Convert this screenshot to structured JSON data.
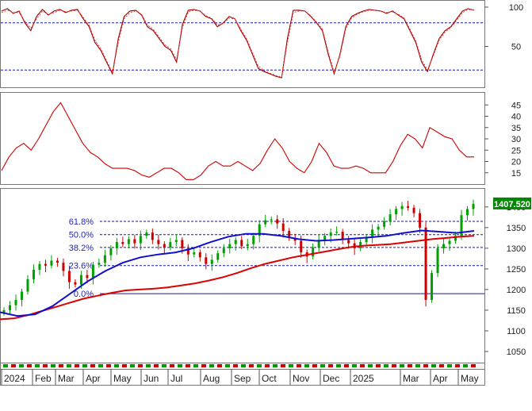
{
  "chart_data": [
    {
      "panel": "stochastic-oscillator",
      "type": "line",
      "y_ticks": [
        "100",
        "50"
      ],
      "ylim": [
        0,
        105
      ],
      "reference_lines": [
        80,
        20
      ],
      "series": [
        {
          "values": [
            95,
            98,
            92,
            95,
            80,
            70,
            88,
            97,
            90,
            95,
            97,
            93,
            96,
            97,
            85,
            75,
            55,
            45,
            30,
            15,
            60,
            88,
            95,
            96,
            90,
            75,
            70,
            60,
            50,
            45,
            30,
            78,
            96,
            97,
            95,
            88,
            85,
            75,
            80,
            88,
            85,
            70,
            58,
            40,
            22,
            18,
            15,
            12,
            10,
            60,
            96,
            96,
            95,
            88,
            80,
            70,
            40,
            15,
            40,
            75,
            88,
            92,
            95,
            97,
            96,
            95,
            92,
            95,
            90,
            85,
            70,
            55,
            30,
            18,
            40,
            60,
            70,
            75,
            85,
            95,
            98,
            96
          ]
        },
        {
          "values": [
            93,
            96,
            93,
            93,
            82,
            73,
            85,
            95,
            91,
            93,
            96,
            94,
            95,
            96,
            87,
            77,
            58,
            47,
            32,
            17,
            55,
            85,
            93,
            95,
            91,
            77,
            72,
            62,
            52,
            47,
            33,
            74,
            94,
            96,
            95,
            89,
            86,
            77,
            79,
            86,
            85,
            72,
            60,
            42,
            25,
            19,
            16,
            13,
            11,
            55,
            93,
            95,
            95,
            89,
            81,
            72,
            43,
            17,
            38,
            72,
            86,
            91,
            94,
            96,
            96,
            95,
            93,
            94,
            91,
            86,
            72,
            57,
            33,
            20,
            38,
            58,
            68,
            74,
            83,
            93,
            97,
            96
          ]
        }
      ]
    },
    {
      "panel": "adx",
      "type": "line",
      "y_ticks": [
        "45",
        "40",
        "35",
        "30",
        "25",
        "20",
        "15"
      ],
      "ylim": [
        10,
        50
      ],
      "series": [
        {
          "values": [
            16,
            22,
            26,
            28,
            25,
            30,
            36,
            42,
            46,
            40,
            34,
            28,
            24,
            22,
            19,
            17,
            17,
            17,
            16,
            14,
            13,
            15,
            17,
            17,
            15,
            12,
            12,
            14,
            18,
            20,
            18,
            18,
            20,
            18,
            16,
            19,
            25,
            30,
            26,
            20,
            17,
            15,
            20,
            28,
            24,
            18,
            17,
            17,
            18,
            17,
            15,
            15,
            15,
            20,
            27,
            32,
            30,
            26,
            35,
            33,
            31,
            30,
            25,
            22,
            22
          ]
        }
      ]
    },
    {
      "panel": "price",
      "type": "candlestick",
      "y_ticks": [
        "1400",
        "1350",
        "1300",
        "1250",
        "1200",
        "1150",
        "1100",
        "1050"
      ],
      "ylim": [
        1025,
        1440
      ],
      "last_value_label": "1407.520",
      "fibonacci_levels": [
        {
          "label": "61.8%",
          "value": 1365
        },
        {
          "label": "50.0%",
          "value": 1333
        },
        {
          "label": "38.2%",
          "value": 1302
        },
        {
          "label": "23.6%",
          "value": 1258
        },
        {
          "label": "0.0%",
          "value": 1190
        }
      ],
      "x_ticks": [
        "2024",
        "Feb",
        "Mar",
        "Apr",
        "May",
        "Jun",
        "Jul",
        "Aug",
        "Sep",
        "Oct",
        "Nov",
        "Dec",
        "2025",
        "Mar",
        "Apr",
        "May"
      ],
      "close": [
        1150,
        1162,
        1175,
        1195,
        1225,
        1248,
        1262,
        1258,
        1270,
        1265,
        1245,
        1218,
        1212,
        1235,
        1228,
        1260,
        1265,
        1283,
        1300,
        1315,
        1310,
        1322,
        1312,
        1330,
        1338,
        1320,
        1310,
        1302,
        1315,
        1320,
        1300,
        1285,
        1290,
        1278,
        1262,
        1272,
        1288,
        1300,
        1310,
        1320,
        1305,
        1310,
        1330,
        1358,
        1368,
        1370,
        1360,
        1342,
        1325,
        1318,
        1290,
        1280,
        1302,
        1320,
        1330,
        1338,
        1340,
        1320,
        1312,
        1300,
        1315,
        1325,
        1345,
        1352,
        1365,
        1382,
        1395,
        1402,
        1398,
        1385,
        1350,
        1175,
        1240,
        1300,
        1310,
        1318,
        1330,
        1380,
        1395,
        1407.52
      ],
      "series": [
        {
          "values": [
            1128,
            1130,
            1138,
            1148,
            1158,
            1168,
            1178,
            1185,
            1192,
            1198,
            1200,
            1202,
            1205,
            1210,
            1215,
            1222,
            1230,
            1240,
            1252,
            1262,
            1270,
            1278,
            1284,
            1290,
            1296,
            1302,
            1306,
            1308,
            1310,
            1314,
            1318,
            1322,
            1325,
            1328,
            1330
          ]
        },
        {
          "values": [
            1145,
            1136,
            1140,
            1160,
            1190,
            1220,
            1245,
            1265,
            1278,
            1285,
            1290,
            1300,
            1315,
            1328,
            1335,
            1335,
            1330,
            1322,
            1318,
            1320,
            1323,
            1326,
            1330,
            1337,
            1343,
            1340,
            1337,
            1342
          ]
        }
      ]
    }
  ],
  "colors": {
    "oscillator_line": "#990000",
    "reference_line": "#1a1aaa",
    "adx_line": "#cc0000",
    "candle_up": "#00a000",
    "candle_down": "#cc0000",
    "ma_blue": "#1010cc",
    "ma_red": "#dd0000",
    "fib_label": "#2222cc",
    "last_value_bg": "#008800"
  }
}
